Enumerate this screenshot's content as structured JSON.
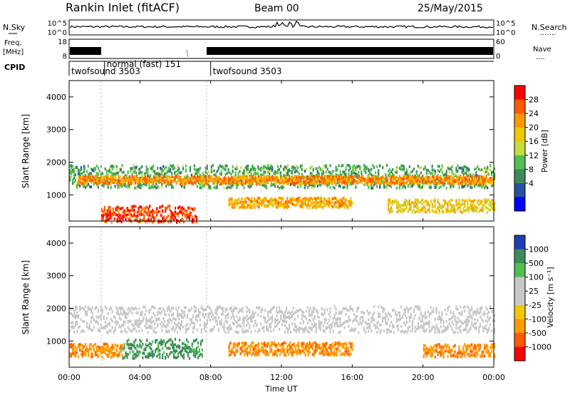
{
  "header": {
    "station": "Rankin Inlet (fitACF)",
    "beam": "Beam 00",
    "date": "25/May/2015"
  },
  "left_labels": {
    "nsky": "N.Sky",
    "freq_line1": "Freq.",
    "freq_line2": "[MHz]",
    "cpid": "CPID"
  },
  "right_labels": {
    "nsearch": "N.Search",
    "nave": "Nave"
  },
  "noise_panel": {
    "left_ticks": [
      "10^5",
      "10^0"
    ],
    "right_ticks": [
      "10^5",
      "10^0"
    ]
  },
  "freq_panel": {
    "left_ticks": [
      "18",
      "8"
    ],
    "right_ticks": [
      "60",
      "0"
    ]
  },
  "cpid_segments": [
    {
      "label": "twofsound 3503",
      "start_hour": 0.0
    },
    {
      "label": "normal (fast) 151",
      "start_hour": 2.0
    },
    {
      "label": "twofsound 3503",
      "start_hour": 8.0
    }
  ],
  "power_colorbar": {
    "title": "Power [dB]",
    "ticks": [
      "28",
      "24",
      "20",
      "16",
      "12",
      "8",
      "4"
    ],
    "colors": [
      "#ff0000",
      "#ff5a00",
      "#ff9a00",
      "#f0c800",
      "#c8dc40",
      "#50c050",
      "#3c8c5a",
      "#2850a0",
      "#0000ff"
    ]
  },
  "velocity_colorbar": {
    "title": "Velocity [m s⁻¹]",
    "ticks": [
      "1000",
      "500",
      "100",
      "25",
      "-25",
      "-100",
      "-500",
      "-1000"
    ],
    "colors": [
      "#1e3cb4",
      "#3c8c5a",
      "#50c050",
      "#c8c8c8",
      "#c8c8c8",
      "#f0c800",
      "#ff9a00",
      "#ff5a00",
      "#ff0000"
    ]
  },
  "chart_data": {
    "type": "heatmap",
    "xlabel": "Time UT",
    "ylabel": "Slant Range [km]",
    "xlim": [
      0,
      24
    ],
    "x_tick_labels": [
      "00:00",
      "04:00",
      "08:00",
      "12:00",
      "16:00",
      "20:00",
      "00:00"
    ],
    "ylim": [
      200,
      4500
    ],
    "y_tick_labels": [
      "1000",
      "2000",
      "3000",
      "4000"
    ],
    "panels": [
      {
        "name": "Power",
        "units": "dB",
        "scatter_bands": [
          {
            "t_start": 0.0,
            "t_end": 24.0,
            "range_center_km": 1600,
            "range_halfwidth_km": 350,
            "value": 12
          },
          {
            "t_start": 0.5,
            "t_end": 24.0,
            "range_center_km": 1500,
            "range_halfwidth_km": 120,
            "value": 24
          },
          {
            "t_start": 1.8,
            "t_end": 7.2,
            "range_center_km": 450,
            "range_halfwidth_km": 250,
            "value": 28
          },
          {
            "t_start": 9.0,
            "t_end": 16.0,
            "range_center_km": 800,
            "range_halfwidth_km": 150,
            "value": 22
          },
          {
            "t_start": 18.0,
            "t_end": 24.0,
            "range_center_km": 700,
            "range_halfwidth_km": 200,
            "value": 20
          }
        ]
      },
      {
        "name": "Velocity",
        "units": "m/s",
        "scatter_bands": [
          {
            "t_start": 0.0,
            "t_end": 24.0,
            "range_center_km": 1700,
            "range_halfwidth_km": 400,
            "value": 0
          },
          {
            "t_start": 0.0,
            "t_end": 3.0,
            "range_center_km": 750,
            "range_halfwidth_km": 200,
            "value": -500
          },
          {
            "t_start": 3.0,
            "t_end": 7.5,
            "range_center_km": 800,
            "range_halfwidth_km": 300,
            "value": 100
          },
          {
            "t_start": 9.0,
            "t_end": 16.0,
            "range_center_km": 800,
            "range_halfwidth_km": 200,
            "value": -500
          },
          {
            "t_start": 20.0,
            "t_end": 24.0,
            "range_center_km": 750,
            "range_halfwidth_km": 200,
            "value": -500
          }
        ]
      }
    ]
  }
}
